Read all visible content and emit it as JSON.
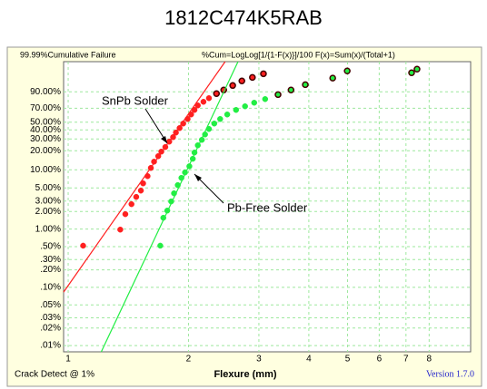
{
  "chart_data": {
    "type": "scatter",
    "title": "1812C474K5RAB",
    "header_left": "99.99%Cumulative Failure",
    "header_right": "%Cum=LogLog[1/{1-F(x)}]/100 F(x)=Sum(x)/(Total+1)",
    "xlabel": "Flexure (mm)",
    "footer_left": "Crack Detect @ 1%",
    "version": "Version 1.7.0",
    "x_scale": "log",
    "y_scale": "weibull",
    "grid": true,
    "xlim": [
      0.974,
      10.16
    ],
    "ylim": [
      0.0078,
      99.95
    ],
    "xticks": [
      1,
      2,
      3,
      4,
      5,
      6,
      7,
      8
    ],
    "yticks": [
      {
        "value": 90,
        "label": "90.00%"
      },
      {
        "value": 70,
        "label": "70.00%"
      },
      {
        "value": 50,
        "label": "50.00%"
      },
      {
        "value": 40,
        "label": "40.00%"
      },
      {
        "value": 30,
        "label": "30.00%"
      },
      {
        "value": 20,
        "label": "20.00%"
      },
      {
        "value": 10,
        "label": "10.00%"
      },
      {
        "value": 5,
        "label": "5.00%"
      },
      {
        "value": 3,
        "label": "3.00%"
      },
      {
        "value": 2,
        "label": "2.00%"
      },
      {
        "value": 1,
        "label": "1.00%"
      },
      {
        "value": 0.5,
        "label": ".50%"
      },
      {
        "value": 0.3,
        "label": ".30%"
      },
      {
        "value": 0.2,
        "label": ".20%"
      },
      {
        "value": 0.1,
        "label": ".10%"
      },
      {
        "value": 0.05,
        "label": ".05%"
      },
      {
        "value": 0.03,
        "label": ".03%"
      },
      {
        "value": 0.02,
        "label": ".02%"
      },
      {
        "value": 0.01,
        "label": ".01%"
      }
    ],
    "annotations": [
      "SnPb Solder",
      "Pb-Free Solder"
    ],
    "series": [
      {
        "color": "#ff2020",
        "x": [
          1.09,
          1.35,
          1.39,
          1.44,
          1.48,
          1.52,
          1.54,
          1.58,
          1.61,
          1.64,
          1.68,
          1.71,
          1.75,
          1.79,
          1.83,
          1.86,
          1.9,
          1.94,
          1.99,
          2.03,
          2.07,
          2.11,
          2.18,
          2.25,
          2.35,
          2.45,
          2.58,
          2.72,
          2.89,
          3.08
        ],
        "values": [
          0.52,
          0.98,
          1.8,
          2.66,
          3.53,
          4.51,
          5.96,
          7.86,
          10.7,
          13.5,
          16.5,
          19.4,
          22.8,
          27.4,
          31.8,
          36.8,
          42.2,
          48.1,
          54.4,
          60.9,
          67.5,
          73.9,
          78.8,
          83.3,
          88.3,
          91.6,
          94.8,
          97.1,
          98.3,
          99.1
        ],
        "fit": {
          "x": [
            0.974,
            2.47
          ],
          "values": [
            0.083,
            99.95
          ]
        }
      },
      {
        "color": "#22ee44",
        "x": [
          1.7,
          1.73,
          1.77,
          1.81,
          1.84,
          1.88,
          1.92,
          1.96,
          2.01,
          2.05,
          2.07,
          2.11,
          2.16,
          2.2,
          2.25,
          2.32,
          2.4,
          2.5,
          2.63,
          2.77,
          2.92,
          3.11,
          3.35,
          3.61,
          3.92,
          4.59,
          4.99,
          7.23,
          7.46
        ],
        "values": [
          0.52,
          1.56,
          2.07,
          2.96,
          4.06,
          5.57,
          7.35,
          9.03,
          11.4,
          15.0,
          18.8,
          24.2,
          29.1,
          34.7,
          41.1,
          48.1,
          54.4,
          60.9,
          67.5,
          72.7,
          77.6,
          82.2,
          87.3,
          91.6,
          95.3,
          98.1,
          99.48,
          99.25,
          99.65
        ],
        "fit": {
          "x": [
            1.21,
            2.66
          ],
          "values": [
            0.0078,
            99.95
          ]
        }
      }
    ]
  }
}
